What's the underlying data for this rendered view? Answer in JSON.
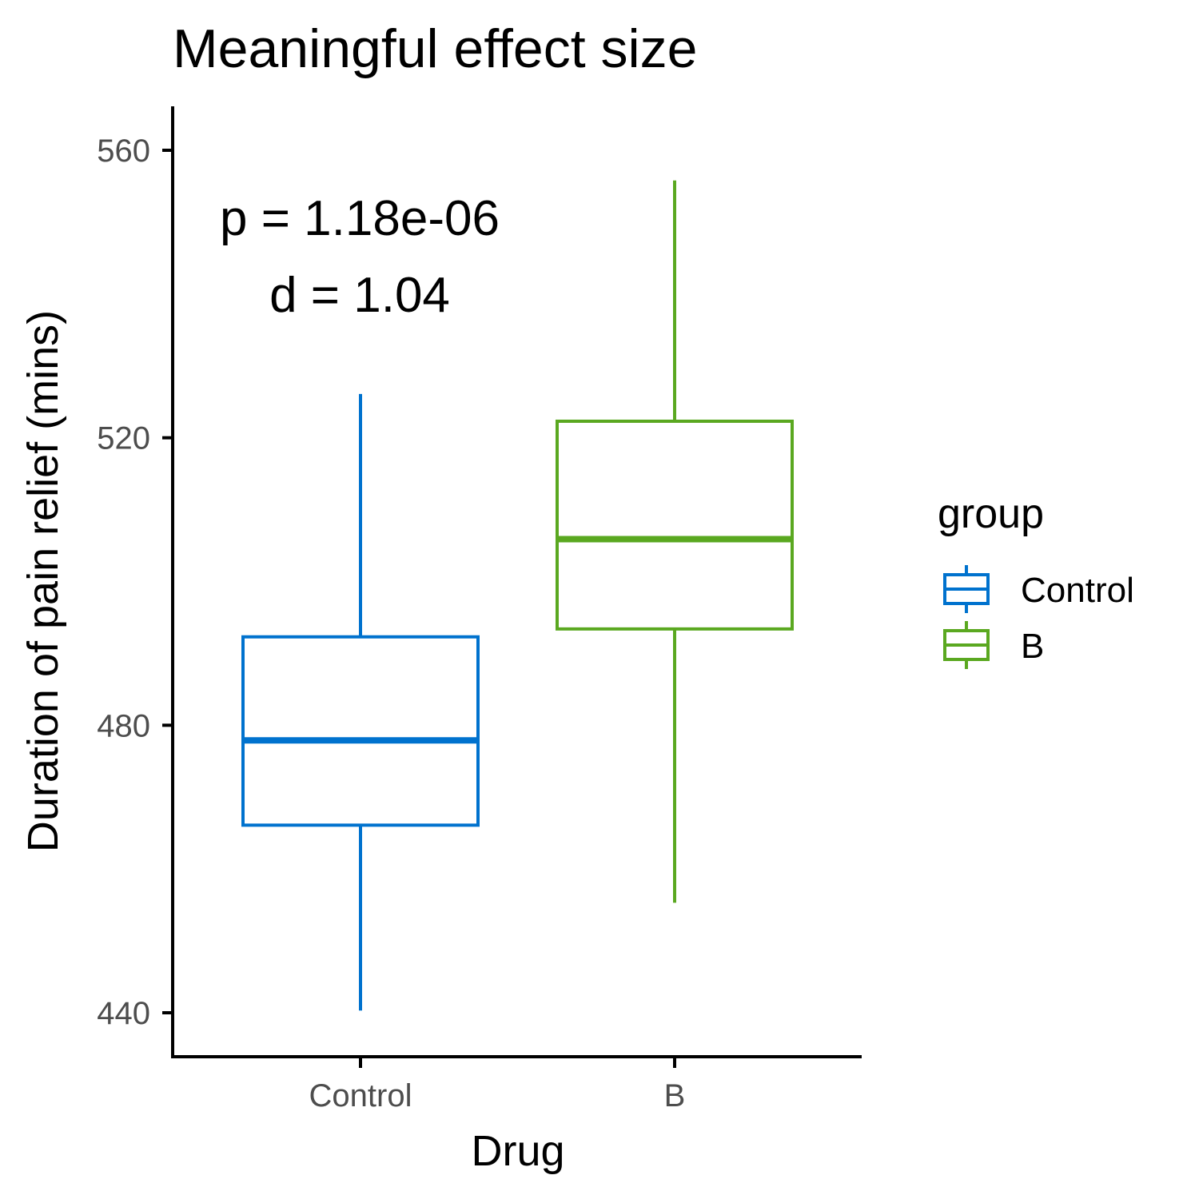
{
  "chart_data": {
    "type": "boxplot",
    "title": "Meaningful effect size",
    "xlabel": "Drug",
    "ylabel": "Duration of pain relief (mins)",
    "categories": [
      "Control",
      "B"
    ],
    "ylim": [
      434,
      566
    ],
    "yticks": [
      440,
      480,
      520,
      560
    ],
    "series": [
      {
        "name": "Control",
        "color": "#0072CE",
        "whisker_low": 440.3,
        "q1": 466.1,
        "median": 477.9,
        "q3": 492.3,
        "whisker_high": 526.1
      },
      {
        "name": "B",
        "color": "#5AA820",
        "whisker_low": 455.3,
        "q1": 493.4,
        "median": 505.9,
        "q3": 522.3,
        "whisker_high": 555.8
      }
    ],
    "annotations": [
      "p = 1.18e-06",
      "d = 1.04"
    ],
    "legend": {
      "title": "group",
      "position": "right",
      "entries": [
        "Control",
        "B"
      ]
    },
    "grid": false
  }
}
